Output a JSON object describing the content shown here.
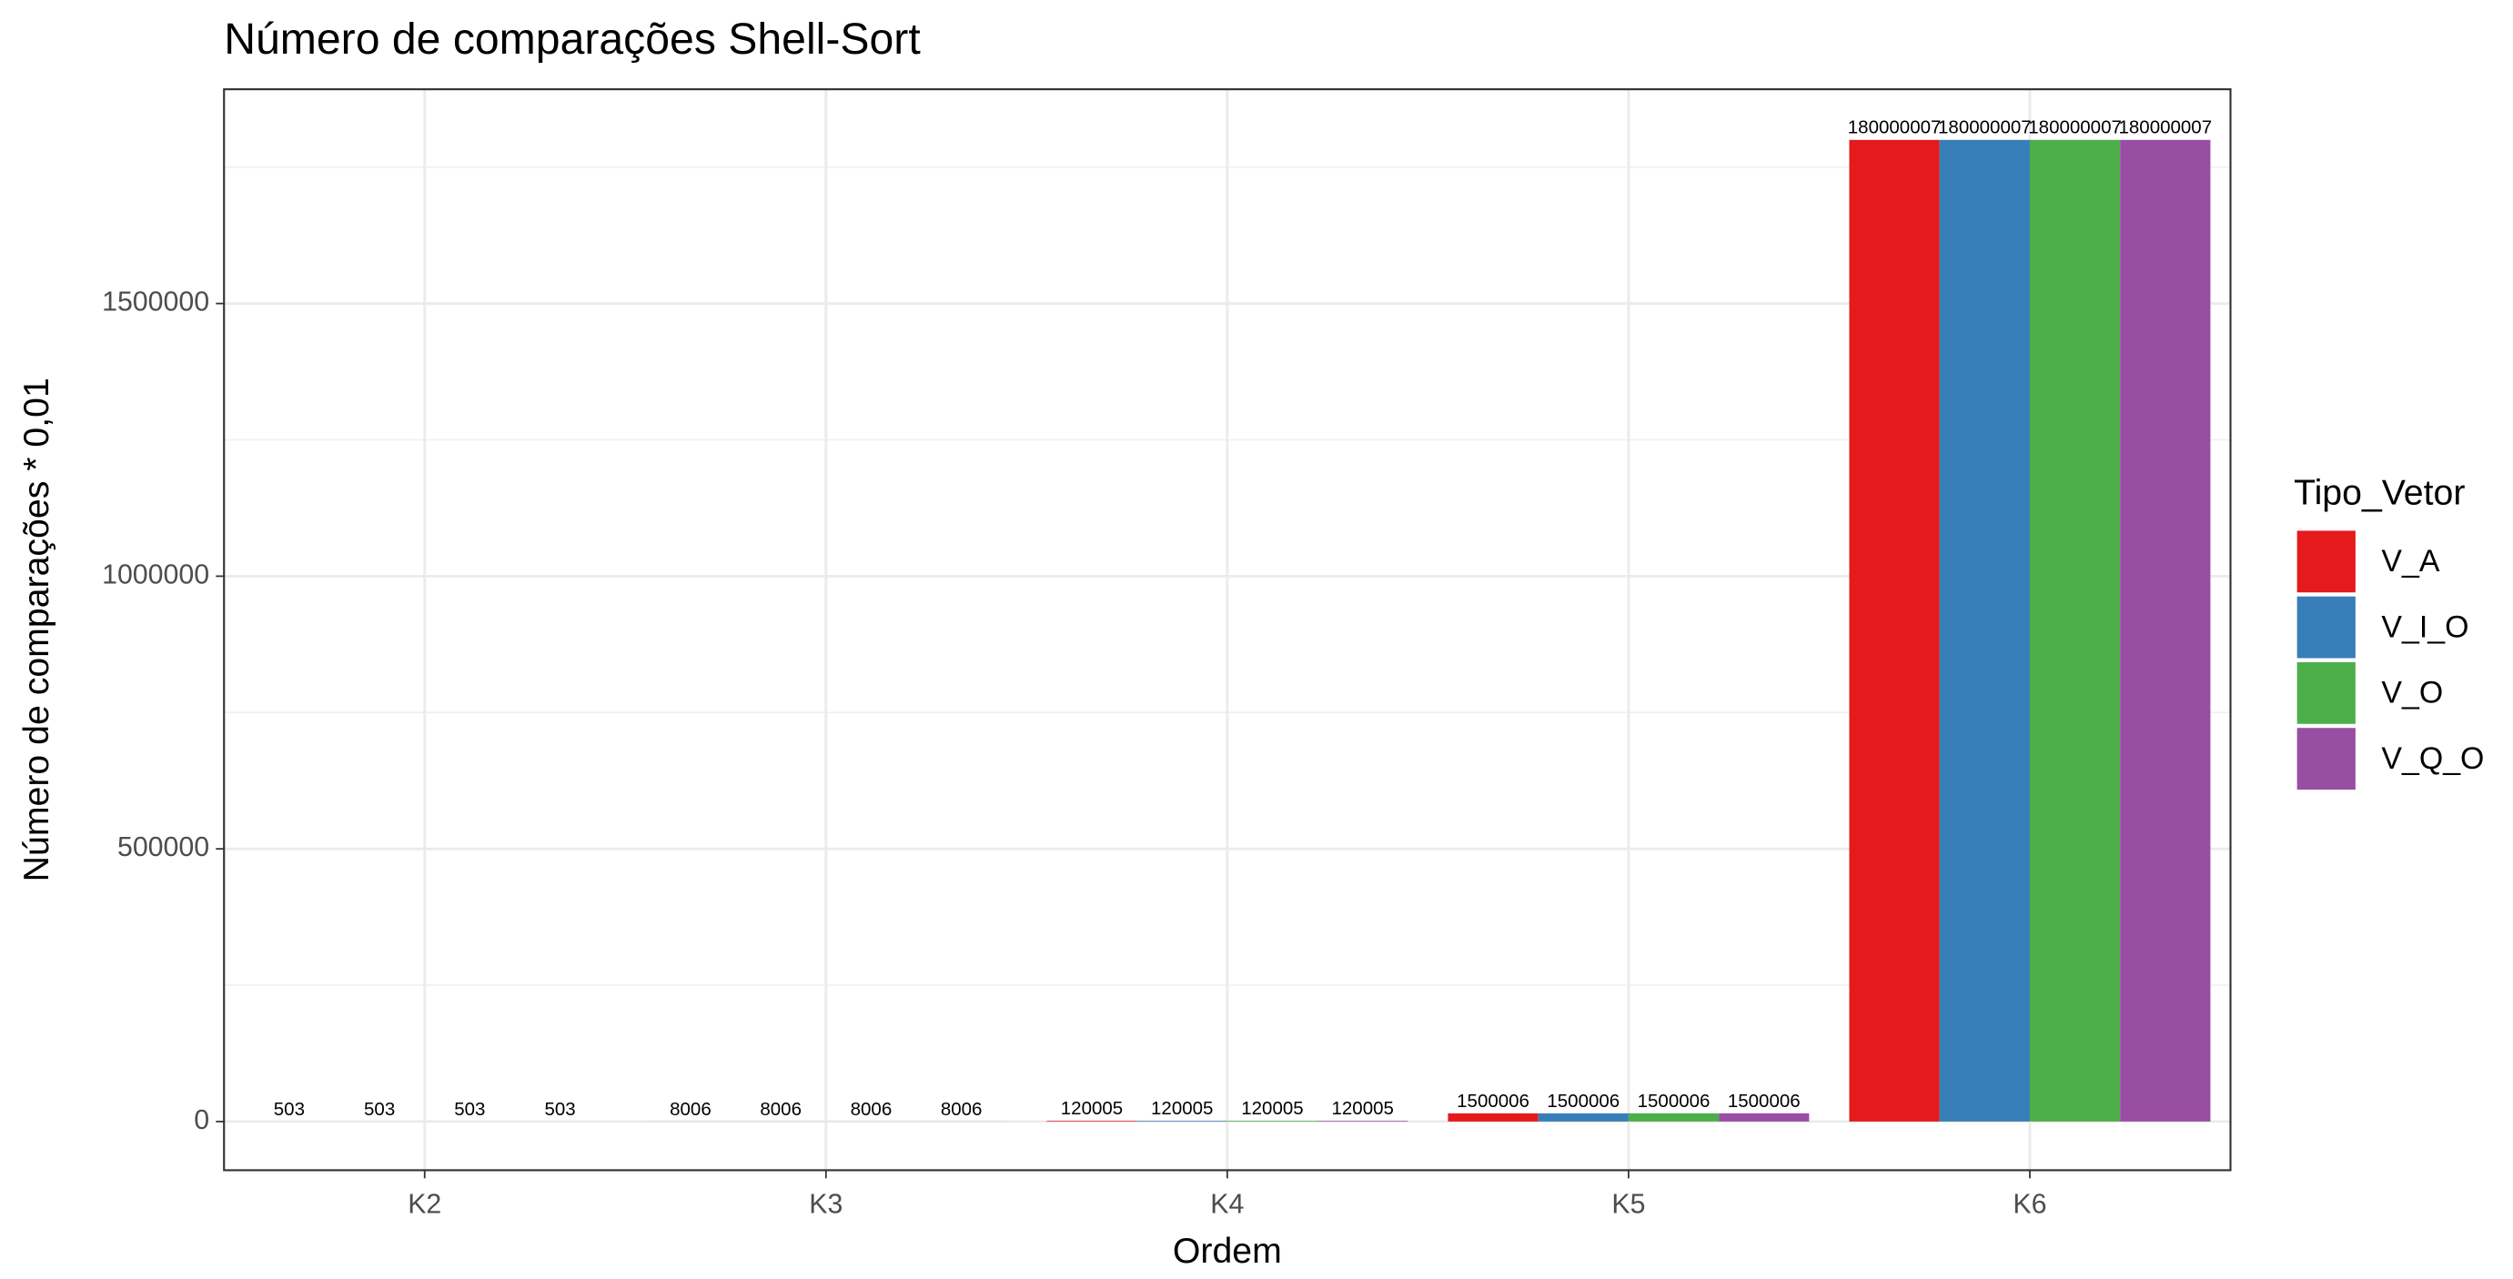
{
  "chart_data": {
    "type": "bar",
    "title": "Número de comparações Shell-Sort",
    "x_label": "Ordem",
    "y_label": "Número de comparações * 0,01",
    "categories": [
      "K2",
      "K3",
      "K4",
      "K5",
      "K6"
    ],
    "series": [
      {
        "name": "V_A",
        "color": "#e41a1c",
        "values": [
          5.03,
          80.06,
          1200.05,
          15000.06,
          1800000.07
        ],
        "value_labels": [
          "503",
          "8006",
          "120005",
          "1500006",
          "180000007"
        ]
      },
      {
        "name": "V_I_O",
        "color": "#377eb8",
        "values": [
          5.03,
          80.06,
          1200.05,
          15000.06,
          1800000.07
        ],
        "value_labels": [
          "503",
          "8006",
          "120005",
          "1500006",
          "180000007"
        ]
      },
      {
        "name": "V_O",
        "color": "#4daf4a",
        "values": [
          5.03,
          80.06,
          1200.05,
          15000.06,
          1800000.07
        ],
        "value_labels": [
          "503",
          "8006",
          "120005",
          "1500006",
          "180000007"
        ]
      },
      {
        "name": "V_Q_O",
        "color": "#984ea3",
        "values": [
          5.03,
          80.06,
          1200.05,
          15000.06,
          1800000.07
        ],
        "value_labels": [
          "503",
          "8006",
          "120005",
          "1500006",
          "180000007"
        ]
      }
    ],
    "legend_title": "Tipo_Vetor",
    "legend": "right",
    "ylim": [
      -89286,
      1892857
    ],
    "yticks": [
      0,
      500000,
      1000000,
      1500000
    ],
    "grid": true
  }
}
